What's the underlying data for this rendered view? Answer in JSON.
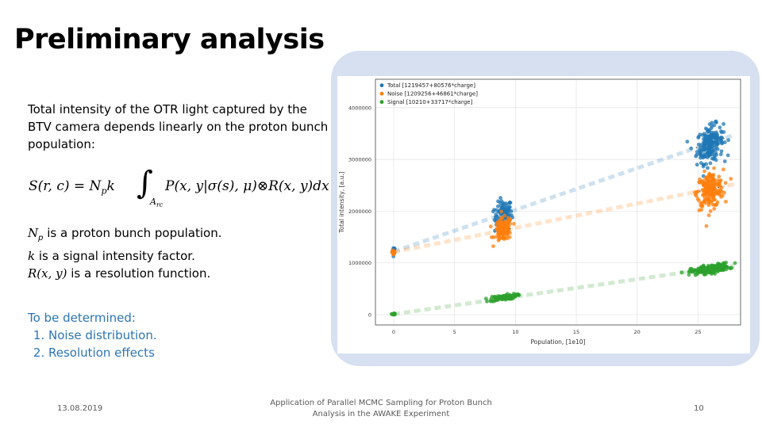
{
  "slide": {
    "title": "Preliminary analysis",
    "intro": "Total intensity of the OTR light captured by the BTV camera depends linearly on the proton bunch population:",
    "formula": {
      "lhs": "S(r, c) = N",
      "lhs_sub": "p",
      "lhs_tail": "k",
      "integral_sub": "A",
      "integral_sub2": "rc",
      "rhs": "P(x, y|σ(s), μ)⊗R(x, y)dx dy"
    },
    "definitions": [
      {
        "symbol": "N",
        "sub": "p",
        "text": " is a proton bunch population."
      },
      {
        "symbol": "k",
        "sub": "",
        "text": " is a signal intensity factor."
      },
      {
        "symbol": "R(x, y)",
        "sub": "",
        "text": " is a resolution function."
      }
    ],
    "todo_heading": "To be determined:",
    "todo_items": [
      "Noise distribution.",
      "Resolution effects"
    ]
  },
  "footer": {
    "date": "13.08.2019",
    "center_line1": "Application of Parallel MCMC Sampling for Proton Bunch",
    "center_line2": "Analysis in the AWAKE Experiment",
    "page": "10"
  },
  "colors": {
    "total": "#1f77b4",
    "noise": "#ff7f0e",
    "signal": "#2ca02c",
    "panel": "#d6e0f1",
    "todo": "#2e75b6"
  },
  "chart_data": {
    "type": "scatter",
    "title": "",
    "xlabel": "Population, [1e10]",
    "ylabel": "Total intensity, [a.u.]",
    "xlim": [
      -1.5,
      28.5
    ],
    "ylim": [
      -200000,
      4550000
    ],
    "xticks": [
      0,
      5,
      10,
      15,
      20,
      25
    ],
    "xtick_labels": [
      "0",
      "5",
      "10",
      "15",
      "20",
      "25"
    ],
    "yticks": [
      0,
      1000000,
      2000000,
      3000000,
      4000000
    ],
    "ytick_labels": [
      "0",
      "1000000",
      "2000000",
      "3000000",
      "4000000"
    ],
    "grid": true,
    "legend_position": "top-left",
    "series": [
      {
        "name": "Total [1219457+80576*charge]",
        "color": "#1f77b4",
        "fit": {
          "intercept": 1219457,
          "slope": 80576
        },
        "clusters": [
          {
            "x_center": 0,
            "y_center": 1230000,
            "x_spread": 0.1,
            "y_spread": 40000,
            "n": 20
          },
          {
            "x_center": 9,
            "y_center": 1900000,
            "x_spread": 0.6,
            "y_spread": 150000,
            "n": 120
          },
          {
            "x_center": 26,
            "y_center": 3300000,
            "x_spread": 0.9,
            "y_spread": 170000,
            "n": 200
          }
        ]
      },
      {
        "name": "Noise [1209256+46861*charge]",
        "color": "#ff7f0e",
        "fit": {
          "intercept": 1209256,
          "slope": 46861
        },
        "clusters": [
          {
            "x_center": 0,
            "y_center": 1210000,
            "x_spread": 0.1,
            "y_spread": 40000,
            "n": 20
          },
          {
            "x_center": 9,
            "y_center": 1640000,
            "x_spread": 0.6,
            "y_spread": 110000,
            "n": 120
          },
          {
            "x_center": 26,
            "y_center": 2410000,
            "x_spread": 0.9,
            "y_spread": 170000,
            "n": 200
          }
        ]
      },
      {
        "name": "Signal [10210+33717*charge]",
        "color": "#2ca02c",
        "fit": {
          "intercept": 10210,
          "slope": 33717
        },
        "clusters": [
          {
            "x_center": 0,
            "y_center": 10000,
            "x_spread": 0.1,
            "y_spread": 8000,
            "n": 20
          },
          {
            "x_center": 9,
            "y_center": 330000,
            "x_spread": 0.9,
            "y_spread": 25000,
            "n": 100
          },
          {
            "x_center": 26,
            "y_center": 880000,
            "x_spread": 1.3,
            "y_spread": 40000,
            "n": 200
          }
        ]
      }
    ]
  }
}
